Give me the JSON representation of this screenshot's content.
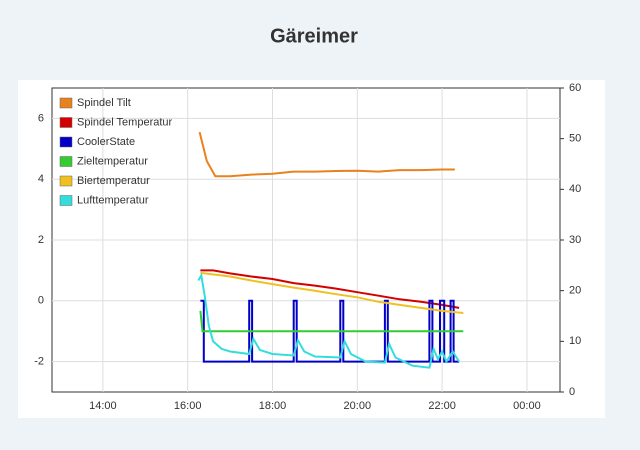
{
  "chart_data": {
    "type": "line",
    "title": "Gäreimer",
    "xlim": [
      12.8,
      24.78
    ],
    "xticks": [
      {
        "value": 14,
        "label": "14:00"
      },
      {
        "value": 16,
        "label": "16:00"
      },
      {
        "value": 18,
        "label": "18:00"
      },
      {
        "value": 20,
        "label": "20:00"
      },
      {
        "value": 22,
        "label": "22:00"
      },
      {
        "value": 24,
        "label": "00:00"
      }
    ],
    "ylim": [
      -3,
      7
    ],
    "yticks": [
      -2,
      0,
      2,
      4,
      6
    ],
    "y2lim": [
      0,
      60
    ],
    "y2ticks": [
      0,
      10,
      20,
      30,
      40,
      50,
      60
    ],
    "grid": true,
    "legend": "upper-left",
    "series": [
      {
        "name": "Spindel Tilt",
        "color": "#e8821e",
        "x": [
          16.28,
          16.45,
          16.65,
          17.0,
          17.5,
          18.0,
          18.5,
          19.0,
          19.5,
          20.0,
          20.5,
          21.0,
          21.5,
          22.0,
          22.3
        ],
        "values": [
          5.55,
          4.6,
          4.1,
          4.1,
          4.15,
          4.18,
          4.25,
          4.25,
          4.27,
          4.28,
          4.25,
          4.3,
          4.3,
          4.32,
          4.32
        ]
      },
      {
        "name": "Spindel Temperatur",
        "color": "#d40000",
        "axis": "y2",
        "x": [
          16.3,
          16.6,
          17.0,
          17.5,
          18.0,
          18.5,
          19.0,
          19.5,
          20.0,
          20.5,
          21.0,
          21.5,
          22.0,
          22.4
        ],
        "values": [
          24.0,
          24.0,
          23.4,
          22.8,
          22.3,
          21.5,
          21.0,
          20.4,
          19.7,
          19.0,
          18.3,
          17.8,
          17.2,
          16.6
        ]
      },
      {
        "name": "CoolerState",
        "color": "#0000c8",
        "x": [
          16.3,
          16.38,
          16.38,
          17.45,
          17.45,
          17.52,
          17.52,
          18.5,
          18.5,
          18.57,
          18.57,
          19.6,
          19.6,
          19.67,
          19.67,
          20.65,
          20.65,
          20.72,
          20.72,
          21.7,
          21.7,
          21.77,
          21.77,
          21.95,
          21.95,
          22.05,
          22.05,
          22.2,
          22.2,
          22.27,
          22.27,
          22.4
        ],
        "values": [
          0,
          0,
          -2,
          -2,
          0,
          0,
          -2,
          -2,
          0,
          0,
          -2,
          -2,
          0,
          0,
          -2,
          -2,
          0,
          0,
          -2,
          -2,
          0,
          0,
          -2,
          -2,
          0,
          0,
          -2,
          -2,
          0,
          0,
          -2,
          -2
        ]
      },
      {
        "name": "Zieltemperatur",
        "color": "#33cc33",
        "axis": "y2",
        "x": [
          16.3,
          16.35,
          22.5
        ],
        "values": [
          16,
          12,
          12
        ]
      },
      {
        "name": "Biertemperatur",
        "color": "#f0c020",
        "axis": "y2",
        "x": [
          16.3,
          17.0,
          17.5,
          18.0,
          18.5,
          19.0,
          19.5,
          20.0,
          20.5,
          21.0,
          21.5,
          22.0,
          22.5
        ],
        "values": [
          23.5,
          22.8,
          22.0,
          21.3,
          20.6,
          20.0,
          19.3,
          18.7,
          17.8,
          17.2,
          16.6,
          16.0,
          15.6
        ]
      },
      {
        "name": "Lufttemperatur",
        "color": "#33dddd",
        "axis": "y2",
        "x": [
          16.25,
          16.32,
          16.4,
          16.5,
          16.6,
          16.8,
          17.0,
          17.45,
          17.55,
          17.7,
          18.0,
          18.5,
          18.6,
          18.75,
          19.0,
          19.6,
          19.7,
          19.85,
          20.2,
          20.65,
          20.75,
          20.9,
          21.3,
          21.7,
          21.8,
          21.9,
          22.0,
          22.1,
          22.25,
          22.4
        ],
        "values": [
          22,
          23,
          19,
          13,
          10,
          8.5,
          8.0,
          7.5,
          10.5,
          8.3,
          7.5,
          7.2,
          10.2,
          8.0,
          7.0,
          6.8,
          10.0,
          7.5,
          6.0,
          5.8,
          9.5,
          6.8,
          5.2,
          4.8,
          8.5,
          6.5,
          8.0,
          6.0,
          8.0,
          6.0
        ]
      }
    ]
  }
}
